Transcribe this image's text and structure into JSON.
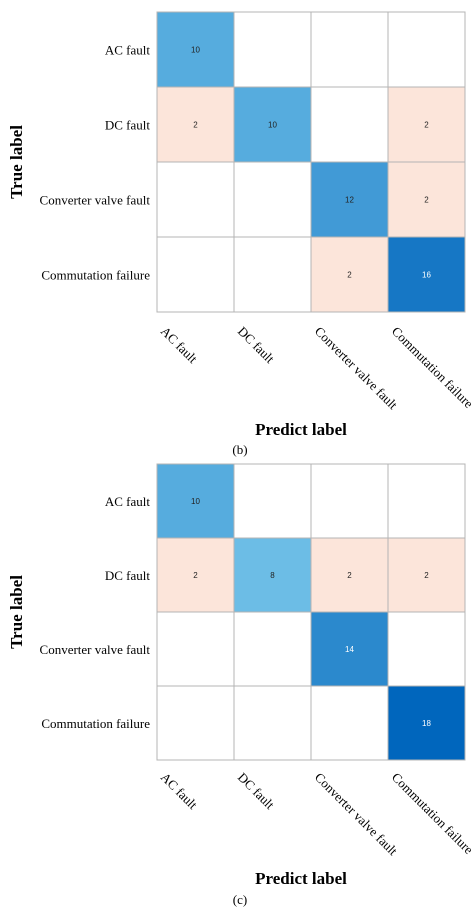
{
  "chart_data": [
    {
      "type": "heatmap",
      "caption": "(b)",
      "xlabel": "Predict label",
      "ylabel": "True label",
      "rows": [
        "AC fault",
        "DC fault",
        "Converter valve fault",
        "Commutation failure"
      ],
      "columns": [
        "AC fault",
        "DC fault",
        "Converter valve fault",
        "Commutation failure"
      ],
      "values": [
        [
          10,
          0,
          0,
          0
        ],
        [
          2,
          10,
          0,
          2
        ],
        [
          0,
          0,
          12,
          2
        ],
        [
          0,
          0,
          2,
          16
        ]
      ]
    },
    {
      "type": "heatmap",
      "caption": "(c)",
      "xlabel": "Predict label",
      "ylabel": "True label",
      "rows": [
        "AC fault",
        "DC fault",
        "Converter valve fault",
        "Commutation failure"
      ],
      "columns": [
        "AC fault",
        "DC fault",
        "Converter valve fault",
        "Commutation failure"
      ],
      "values": [
        [
          10,
          0,
          0,
          0
        ],
        [
          2,
          8,
          2,
          2
        ],
        [
          0,
          0,
          14,
          0
        ],
        [
          0,
          0,
          0,
          18
        ]
      ]
    }
  ],
  "colors": {
    "offdiagonal": "#fce5da",
    "grid": "#b4b4b4",
    "diag_light": "#6cbde6",
    "diag_dark": "#0066bd"
  }
}
